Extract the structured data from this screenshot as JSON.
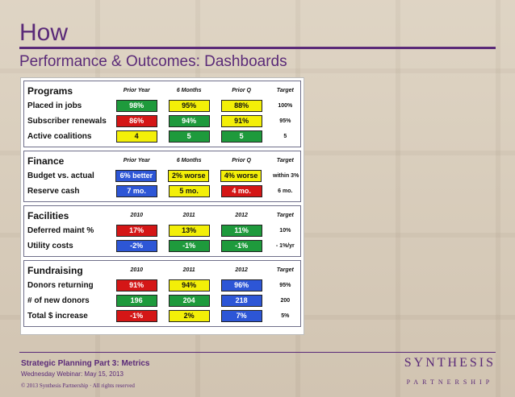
{
  "slide": {
    "title": "How",
    "subtitle": "Performance & Outcomes: Dashboards"
  },
  "dashboard": {
    "sections": [
      {
        "name": "Programs",
        "columns": [
          "Prior Year",
          "6 Months",
          "Prior Q",
          "Target"
        ],
        "rows": [
          {
            "label": "Placed in jobs",
            "values": [
              "98%",
              "95%",
              "88%"
            ],
            "colors": [
              "green",
              "yellow",
              "yellow"
            ],
            "target": "100%"
          },
          {
            "label": "Subscriber renewals",
            "values": [
              "86%",
              "94%",
              "91%"
            ],
            "colors": [
              "red",
              "green",
              "yellow"
            ],
            "target": "95%"
          },
          {
            "label": "Active coalitions",
            "values": [
              "4",
              "5",
              "5"
            ],
            "colors": [
              "yellow",
              "green",
              "green"
            ],
            "target": "5"
          }
        ]
      },
      {
        "name": "Finance",
        "columns": [
          "Prior Year",
          "6 Months",
          "Prior Q",
          "Target"
        ],
        "rows": [
          {
            "label": "Budget vs. actual",
            "values": [
              "6% better",
              "2% worse",
              "4% worse"
            ],
            "colors": [
              "blue",
              "yellow",
              "yellow"
            ],
            "target": "within 3%"
          },
          {
            "label": "Reserve cash",
            "values": [
              "7 mo.",
              "5 mo.",
              "4 mo."
            ],
            "colors": [
              "blue",
              "yellow",
              "red"
            ],
            "target": "6 mo."
          }
        ]
      },
      {
        "name": "Facilities",
        "columns": [
          "2010",
          "2011",
          "2012",
          "Target"
        ],
        "rows": [
          {
            "label": "Deferred maint %",
            "values": [
              "17%",
              "13%",
              "11%"
            ],
            "colors": [
              "red",
              "yellow",
              "green"
            ],
            "target": "10%"
          },
          {
            "label": "Utility costs",
            "values": [
              "-2%",
              "-1%",
              "-1%"
            ],
            "colors": [
              "blue",
              "green",
              "green"
            ],
            "target": "- 1%/yr"
          }
        ]
      },
      {
        "name": "Fundraising",
        "columns": [
          "2010",
          "2011",
          "2012",
          "Target"
        ],
        "rows": [
          {
            "label": "Donors returning",
            "values": [
              "91%",
              "94%",
              "96%"
            ],
            "colors": [
              "red",
              "yellow",
              "blue"
            ],
            "target": "95%"
          },
          {
            "label": "# of new donors",
            "values": [
              "196",
              "204",
              "218"
            ],
            "colors": [
              "green",
              "green",
              "blue"
            ],
            "target": "200"
          },
          {
            "label": "Total $ increase",
            "values": [
              "-1%",
              "2%",
              "7%"
            ],
            "colors": [
              "red",
              "yellow",
              "blue"
            ],
            "target": "5%"
          }
        ]
      }
    ]
  },
  "footer": {
    "line1": "Strategic Planning Part 3: Metrics",
    "line2": "Wednesday Webinar:  May 15, 2013",
    "line3": "© 2013 Synthesis Partnership · All rights reserved",
    "brand_top": "SYNTHESIS",
    "brand_bottom": "PARTNERSHIP"
  },
  "colors": {
    "accent": "#5a2a78",
    "green": "#1e9a3c",
    "yellow": "#f3ef08",
    "red": "#d41616",
    "blue": "#2d56d6"
  }
}
